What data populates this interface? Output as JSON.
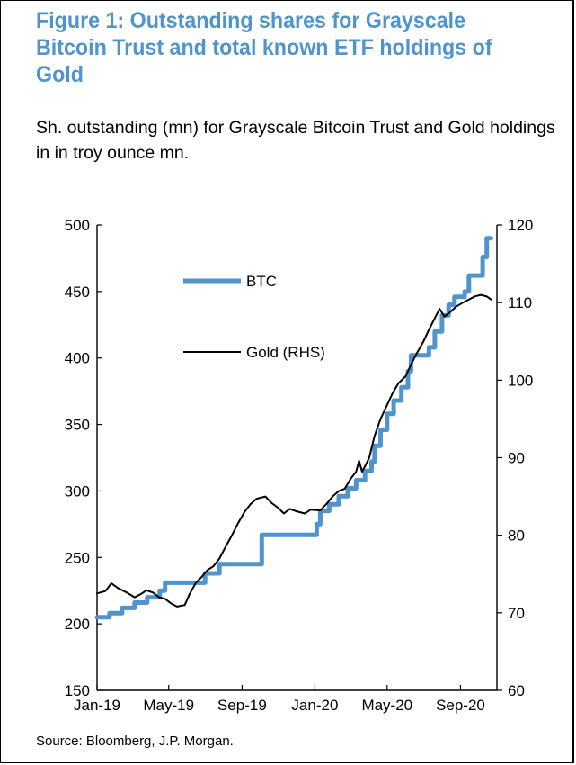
{
  "title": "Figure 1: Outstanding shares for Grayscale Bitcoin Trust and total known ETF holdings of Gold",
  "subtitle": "Sh. outstanding (mn) for Grayscale Bitcoin Trust and Gold holdings in in troy ounce mn.",
  "source": "Source: Bloomberg, J.P. Morgan.",
  "chart_data": {
    "type": "line",
    "x_tick_labels": [
      "Jan-19",
      "May-19",
      "Sep-19",
      "Jan-20",
      "May-20",
      "Sep-20"
    ],
    "x_range": [
      "2019-01-01",
      "2020-11-01"
    ],
    "y_left_range": [
      150,
      500
    ],
    "y_left_ticks": [
      150,
      200,
      250,
      300,
      350,
      400,
      450,
      500
    ],
    "y_right_range": [
      60,
      120
    ],
    "y_right_ticks": [
      60,
      70,
      80,
      90,
      100,
      110,
      120
    ],
    "legend_position": "upper-left",
    "grid": false,
    "series": [
      {
        "name": "BTC",
        "axis": "left",
        "color": "#4f94cd",
        "style": "step",
        "points": [
          [
            "2019-01-01",
            205
          ],
          [
            "2019-01-22",
            208
          ],
          [
            "2019-02-12",
            212
          ],
          [
            "2019-03-05",
            216
          ],
          [
            "2019-03-26",
            220
          ],
          [
            "2019-04-16",
            225
          ],
          [
            "2019-04-25",
            231
          ],
          [
            "2019-06-25",
            231
          ],
          [
            "2019-07-01",
            238
          ],
          [
            "2019-07-25",
            245
          ],
          [
            "2019-09-30",
            245
          ],
          [
            "2019-10-04",
            267
          ],
          [
            "2019-12-25",
            267
          ],
          [
            "2020-01-04",
            275
          ],
          [
            "2020-01-10",
            285
          ],
          [
            "2020-01-25",
            290
          ],
          [
            "2020-02-10",
            296
          ],
          [
            "2020-02-25",
            302
          ],
          [
            "2020-03-10",
            308
          ],
          [
            "2020-03-25",
            315
          ],
          [
            "2020-04-05",
            322
          ],
          [
            "2020-04-10",
            334
          ],
          [
            "2020-04-20",
            346
          ],
          [
            "2020-05-01",
            358
          ],
          [
            "2020-05-12",
            368
          ],
          [
            "2020-05-25",
            378
          ],
          [
            "2020-06-05",
            390
          ],
          [
            "2020-06-10",
            402
          ],
          [
            "2020-07-05",
            402
          ],
          [
            "2020-07-10",
            408
          ],
          [
            "2020-07-20",
            420
          ],
          [
            "2020-08-01",
            432
          ],
          [
            "2020-08-12",
            440
          ],
          [
            "2020-08-22",
            446
          ],
          [
            "2020-09-08",
            450
          ],
          [
            "2020-09-15",
            462
          ],
          [
            "2020-10-01",
            462
          ],
          [
            "2020-10-08",
            476
          ],
          [
            "2020-10-15",
            490
          ],
          [
            "2020-10-22",
            490
          ]
        ]
      },
      {
        "name": "Gold (RHS)",
        "axis": "right",
        "color": "#000000",
        "style": "line",
        "points": [
          [
            "2019-01-01",
            72.5
          ],
          [
            "2019-01-15",
            72.8
          ],
          [
            "2019-01-25",
            73.8
          ],
          [
            "2019-02-05",
            73.2
          ],
          [
            "2019-02-20",
            72.6
          ],
          [
            "2019-03-05",
            72.0
          ],
          [
            "2019-03-15",
            72.4
          ],
          [
            "2019-03-25",
            72.9
          ],
          [
            "2019-04-05",
            72.6
          ],
          [
            "2019-04-15",
            72.0
          ],
          [
            "2019-04-25",
            71.8
          ],
          [
            "2019-05-05",
            71.2
          ],
          [
            "2019-05-15",
            70.8
          ],
          [
            "2019-05-28",
            71.0
          ],
          [
            "2019-06-05",
            72.4
          ],
          [
            "2019-06-15",
            73.8
          ],
          [
            "2019-06-25",
            74.6
          ],
          [
            "2019-07-05",
            75.5
          ],
          [
            "2019-07-15",
            76.0
          ],
          [
            "2019-07-25",
            77.0
          ],
          [
            "2019-08-05",
            78.6
          ],
          [
            "2019-08-15",
            80.0
          ],
          [
            "2019-08-25",
            81.5
          ],
          [
            "2019-09-05",
            83.0
          ],
          [
            "2019-09-15",
            84.0
          ],
          [
            "2019-09-25",
            84.7
          ],
          [
            "2019-10-10",
            85.0
          ],
          [
            "2019-10-20",
            84.2
          ],
          [
            "2019-11-01",
            83.5
          ],
          [
            "2019-11-10",
            82.8
          ],
          [
            "2019-11-20",
            83.4
          ],
          [
            "2019-12-01",
            83.1
          ],
          [
            "2019-12-15",
            82.8
          ],
          [
            "2019-12-25",
            83.3
          ],
          [
            "2020-01-10",
            83.2
          ],
          [
            "2020-01-20",
            84.0
          ],
          [
            "2020-02-01",
            85.1
          ],
          [
            "2020-02-10",
            85.7
          ],
          [
            "2020-02-20",
            86.0
          ],
          [
            "2020-03-01",
            87.3
          ],
          [
            "2020-03-10",
            88.2
          ],
          [
            "2020-03-15",
            89.6
          ],
          [
            "2020-03-20",
            88.2
          ],
          [
            "2020-03-25",
            88.9
          ],
          [
            "2020-04-01",
            90.0
          ],
          [
            "2020-04-10",
            92.8
          ],
          [
            "2020-04-20",
            95.0
          ],
          [
            "2020-05-01",
            96.8
          ],
          [
            "2020-05-10",
            98.3
          ],
          [
            "2020-05-20",
            99.6
          ],
          [
            "2020-06-01",
            100.5
          ],
          [
            "2020-06-10",
            102.0
          ],
          [
            "2020-06-20",
            103.5
          ],
          [
            "2020-07-01",
            105.0
          ],
          [
            "2020-07-10",
            106.5
          ],
          [
            "2020-07-20",
            108.0
          ],
          [
            "2020-07-28",
            109.2
          ],
          [
            "2020-08-05",
            108.2
          ],
          [
            "2020-08-15",
            108.8
          ],
          [
            "2020-08-25",
            109.5
          ],
          [
            "2020-09-05",
            110.0
          ],
          [
            "2020-09-15",
            110.4
          ],
          [
            "2020-09-25",
            110.8
          ],
          [
            "2020-10-05",
            111.0
          ],
          [
            "2020-10-15",
            110.8
          ],
          [
            "2020-10-22",
            110.4
          ]
        ]
      }
    ]
  }
}
